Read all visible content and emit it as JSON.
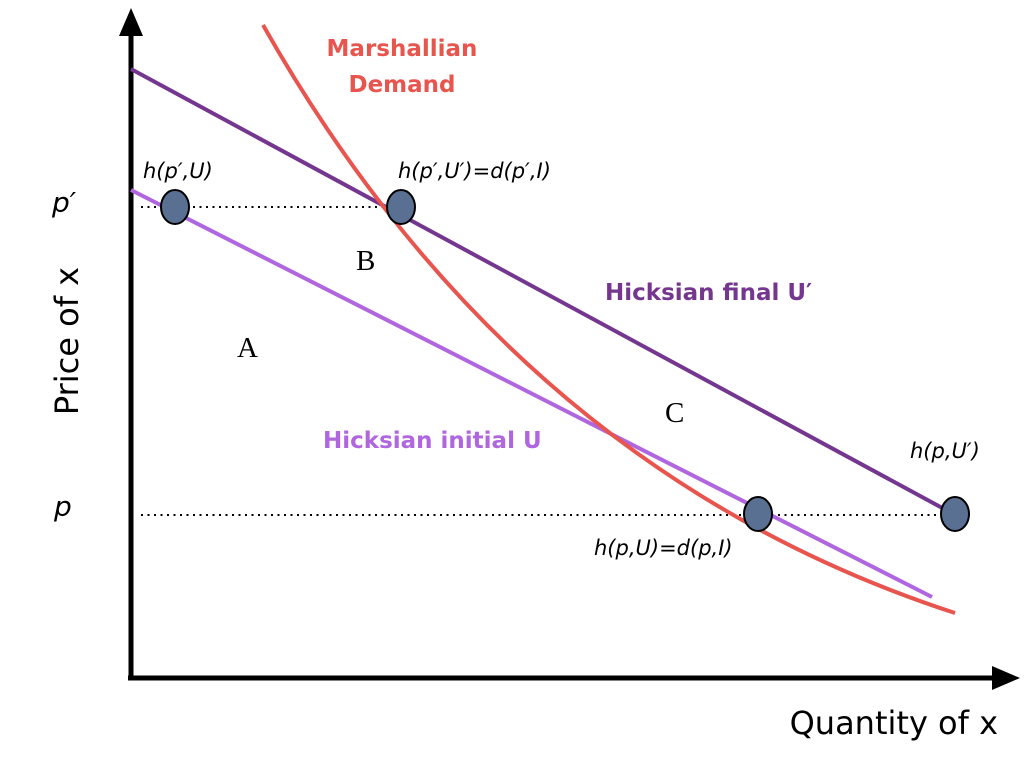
{
  "axes": {
    "x_label": "Quantity of x",
    "y_label": "Price of x",
    "y_tick_high": "p′",
    "y_tick_low": "p"
  },
  "curves": {
    "marshallian": {
      "label_line1": "Marshallian",
      "label_line2": "Demand",
      "color": "#e8554e"
    },
    "hicksian_final": {
      "label": "Hicksian final U′",
      "color": "#74368f"
    },
    "hicksian_initial": {
      "label": "Hicksian initial U",
      "color": "#b066de"
    }
  },
  "points": {
    "h_pprime_U": "h(p′,U)",
    "h_pprime_Uprime": "h(p′,U′)=d(p′,I)",
    "h_p_U": "h(p,U)=d(p,I)",
    "h_p_Uprime": "h(p,U′)",
    "fill_color": "#5a7092"
  },
  "areas": {
    "a": "A",
    "b": "B",
    "c": "C"
  }
}
